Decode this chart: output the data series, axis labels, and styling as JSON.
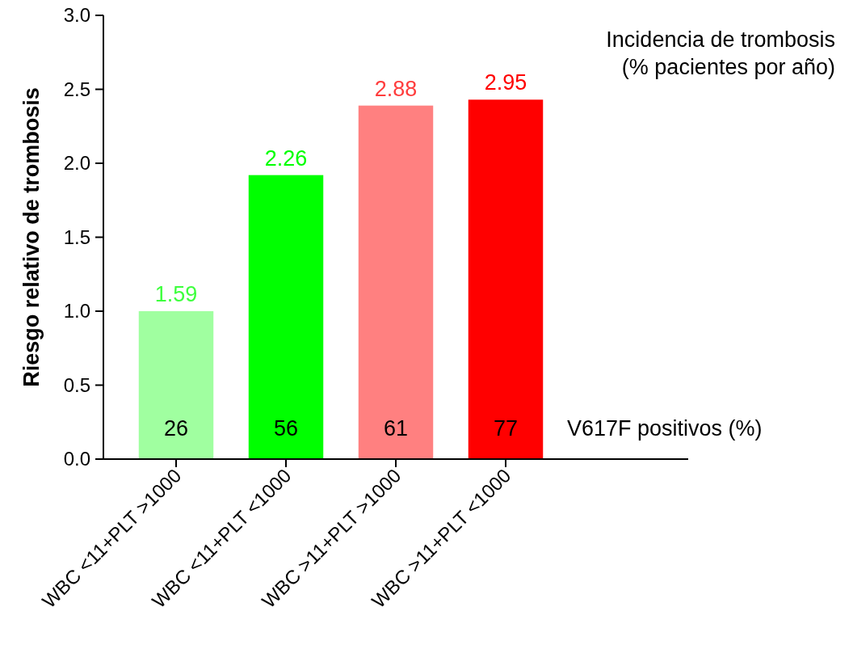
{
  "chart_data": {
    "type": "bar",
    "ylabel": "Riesgo relativo de trombosis",
    "categories": [
      "WBC <11+PLT >1000",
      "WBC <11+PLT <1000",
      "WBC >11+PLT >1000",
      "WBC >11+PLT <1000"
    ],
    "values": [
      1.0,
      1.92,
      2.39,
      2.43
    ],
    "colors": [
      "#a0ffa0",
      "#00ff00",
      "#ff8080",
      "#ff0000"
    ],
    "ylim": [
      0,
      3
    ],
    "yticks": [
      {
        "value": 0,
        "label": "0.0"
      },
      {
        "value": 0.5,
        "label": "0.5"
      },
      {
        "value": 1,
        "label": "1.0"
      },
      {
        "value": 1.5,
        "label": "1.5"
      },
      {
        "value": 2,
        "label": "2.0"
      },
      {
        "value": 2.5,
        "label": "2.5"
      },
      {
        "value": 3,
        "label": "3.0"
      }
    ],
    "grid": false,
    "annotations": [
      "Incidencia de trombosis\n(% pacientes por año)",
      "V617F positivos (%)",
      "26",
      "56",
      "61",
      "77",
      {
        "text": "1.59",
        "x": "WBC <11+PLT >1000",
        "y": 1.0
      },
      {
        "text": "2.26",
        "x": "WBC <11+PLT <1000",
        "y": 1.92
      },
      {
        "text": "2.88",
        "x": "WBC >11+PLT >1000",
        "y": 2.39
      },
      {
        "text": "2.95",
        "x": "WBC >11+PLT <1000",
        "y": 2.43
      }
    ]
  }
}
